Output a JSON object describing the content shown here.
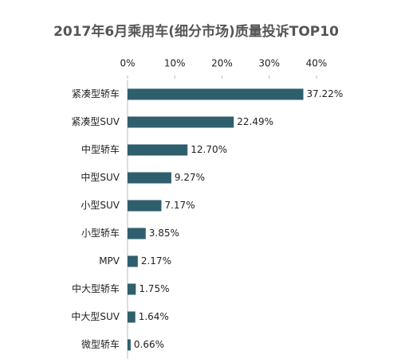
{
  "chart_data": {
    "type": "bar",
    "orientation": "horizontal",
    "title": "2017年6月乘用车(细分市场)质量投诉TOP10",
    "categories": [
      "紧凑型轿车",
      "紧凑型SUV",
      "中型轿车",
      "中型SUV",
      "小型SUV",
      "小型轿车",
      "MPV",
      "中大型轿车",
      "中大型SUV",
      "微型轿车"
    ],
    "values": [
      37.22,
      22.49,
      12.7,
      9.27,
      7.17,
      3.85,
      2.17,
      1.75,
      1.64,
      0.66
    ],
    "value_labels": [
      "37.22%",
      "22.49%",
      "12.70%",
      "9.27%",
      "7.17%",
      "3.85%",
      "2.17%",
      "1.75%",
      "1.64%",
      "0.66%"
    ],
    "color": "#2f5f6c",
    "xlim": [
      0,
      40
    ],
    "xticks": [
      {
        "value": 0,
        "label": "0%"
      },
      {
        "value": 10,
        "label": "10%"
      },
      {
        "value": 20,
        "label": "20%"
      },
      {
        "value": 30,
        "label": "30%"
      },
      {
        "value": 40,
        "label": "40%"
      }
    ],
    "grid": false
  }
}
